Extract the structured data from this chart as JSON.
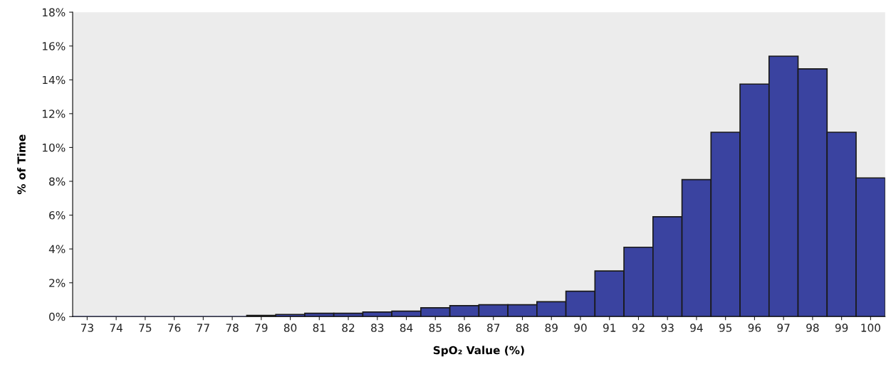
{
  "chart_data": {
    "type": "bar",
    "xlabel": "SpO₂ Value (%)",
    "ylabel": "% of Time",
    "categories": [
      "73",
      "74",
      "75",
      "76",
      "77",
      "78",
      "79",
      "80",
      "81",
      "82",
      "83",
      "84",
      "85",
      "86",
      "87",
      "88",
      "89",
      "90",
      "91",
      "92",
      "93",
      "94",
      "95",
      "96",
      "97",
      "98",
      "99",
      "100"
    ],
    "values": [
      0,
      0,
      0,
      0,
      0,
      0,
      0.07,
      0.13,
      0.2,
      0.2,
      0.27,
      0.32,
      0.52,
      0.65,
      0.7,
      0.7,
      0.88,
      1.5,
      2.7,
      4.1,
      5.9,
      8.1,
      10.9,
      13.75,
      15.4,
      14.65,
      10.9,
      8.2
    ],
    "color": "#3a43a0",
    "ylim": [
      0,
      18
    ],
    "yticks": [
      {
        "value": 0,
        "label": "0%"
      },
      {
        "value": 2,
        "label": "2%"
      },
      {
        "value": 4,
        "label": "4%"
      },
      {
        "value": 6,
        "label": "6%"
      },
      {
        "value": 8,
        "label": "8%"
      },
      {
        "value": 10,
        "label": "10%"
      },
      {
        "value": 12,
        "label": "12%"
      },
      {
        "value": 14,
        "label": "14%"
      },
      {
        "value": 16,
        "label": "16%"
      },
      {
        "value": 18,
        "label": "18%"
      }
    ],
    "grid": false,
    "legend": false
  }
}
